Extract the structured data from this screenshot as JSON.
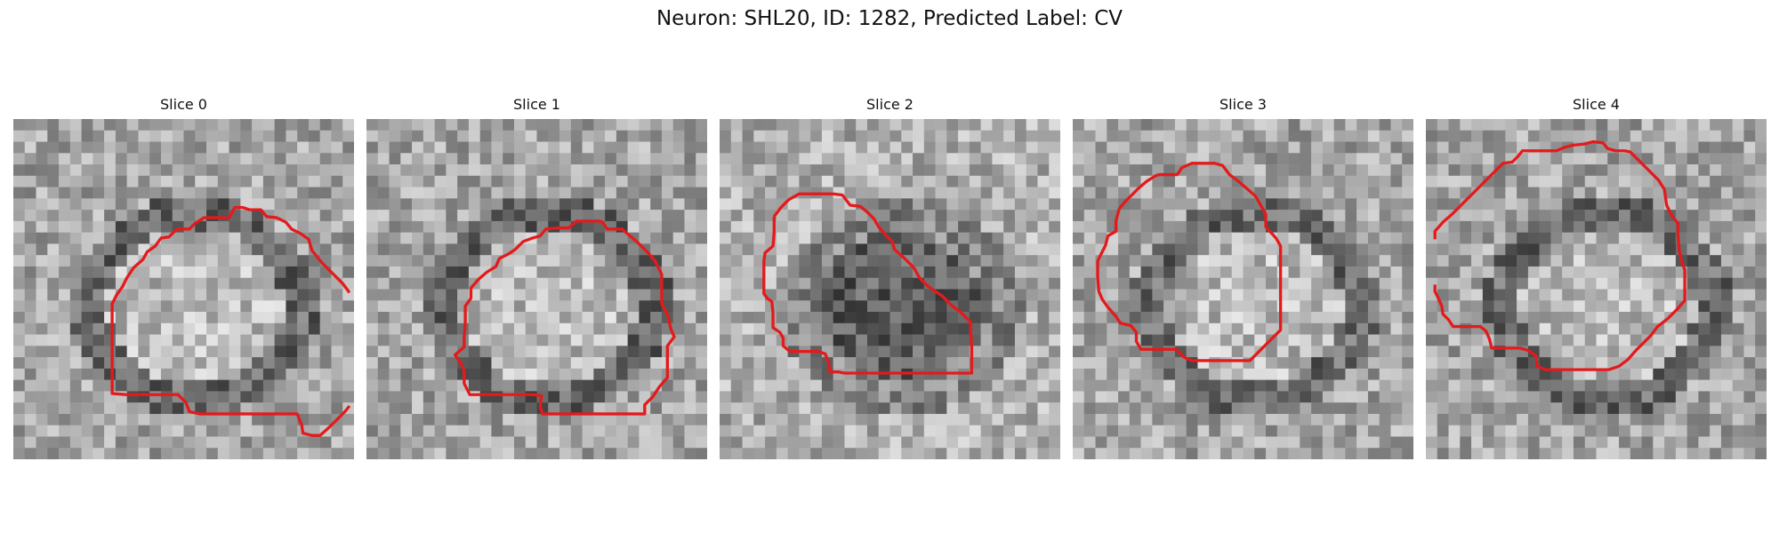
{
  "figure": {
    "title": "Neuron: SHL20, ID: 1282, Predicted Label: CV",
    "contour_color": "#e41a1c",
    "colormap": "gray"
  },
  "slices": [
    {
      "label": "Slice 0",
      "seed": 11,
      "shade": "bright-center"
    },
    {
      "label": "Slice 1",
      "seed": 23,
      "shade": "bright-center"
    },
    {
      "label": "Slice 2",
      "seed": 37,
      "shade": "dark-center"
    },
    {
      "label": "Slice 3",
      "seed": 41,
      "shade": "bright-center"
    },
    {
      "label": "Slice 4",
      "seed": 59,
      "shade": "bright-center"
    }
  ]
}
